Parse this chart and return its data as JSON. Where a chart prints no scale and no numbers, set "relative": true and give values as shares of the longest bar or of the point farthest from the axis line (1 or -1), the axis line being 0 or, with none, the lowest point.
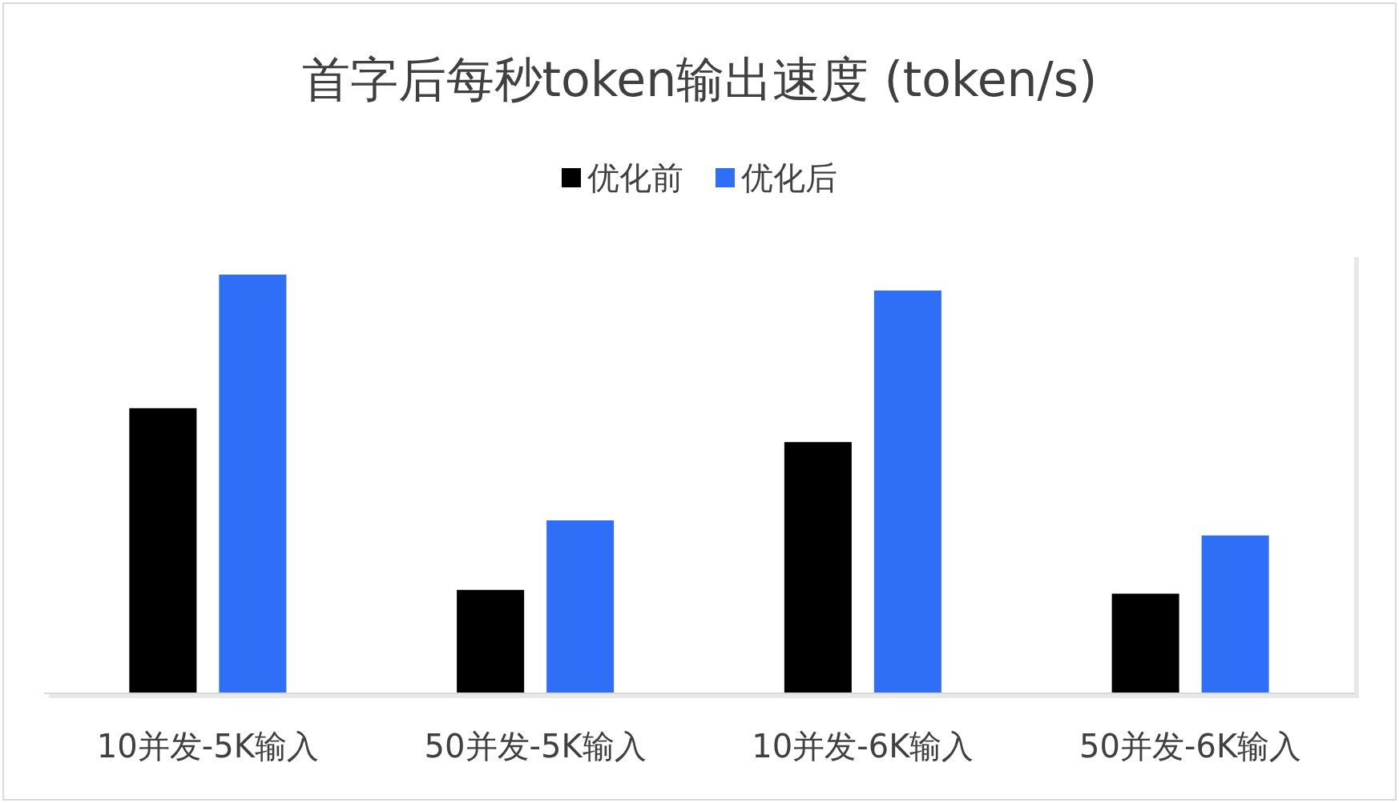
{
  "chart_data": {
    "type": "bar",
    "title": "首字后每秒token输出速度 (token/s)",
    "relative": true,
    "legend": "top",
    "categories": [
      "10并发-5K输入",
      "50并发-5K输入",
      "10并发-6K输入",
      "50并发-6K输入"
    ],
    "series": [
      {
        "name": "优化前",
        "color": "#000000",
        "values": [
          0.681,
          0.247,
          0.6,
          0.238
        ]
      },
      {
        "name": "优化后",
        "color": "#2f6ff7",
        "values": [
          1,
          0.413,
          0.962,
          0.377
        ]
      }
    ]
  }
}
